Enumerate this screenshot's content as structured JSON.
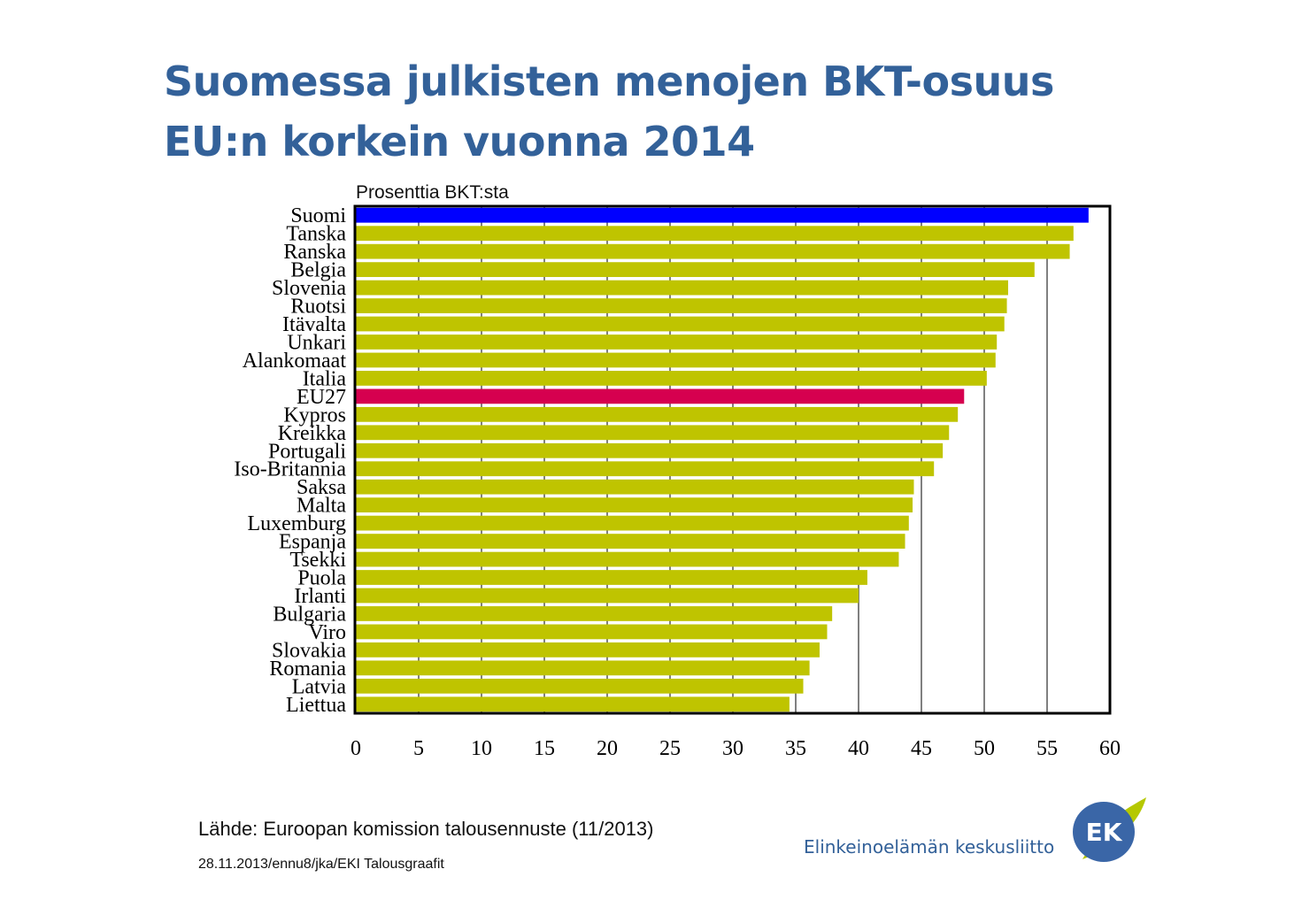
{
  "page": {
    "title_line1": "Suomessa julkisten menojen BKT-osuus",
    "title_line2": "EU:n korkein vuonna 2014",
    "source": "Lähde: Euroopan komission talousennuste (11/2013)",
    "footer": "28.11.2013/ennu8/jka/EKI Talousgraafit",
    "logo_text": "Elinkeinoelämän keskusliitto",
    "logo_mark": "EK"
  },
  "chart_data": {
    "type": "bar",
    "orientation": "horizontal",
    "title": "",
    "unit_label": "Prosenttia BKT:sta",
    "xlabel": "",
    "ylabel": "",
    "xlim": [
      0,
      60
    ],
    "xticks": [
      "0",
      "5",
      "10",
      "15",
      "20",
      "25",
      "30",
      "35",
      "40",
      "45",
      "50",
      "55",
      "60"
    ],
    "grid": "vertical",
    "categories": [
      "Suomi",
      "Tanska",
      "Ranska",
      "Belgia",
      "Slovenia",
      "Ruotsi",
      "Itävalta",
      "Unkari",
      "Alankomaat",
      "Italia",
      "EU27",
      "Kypros",
      "Kreikka",
      "Portugali",
      "Iso-Britannia",
      "Saksa",
      "Malta",
      "Luxemburg",
      "Espanja",
      "Tsekki",
      "Puola",
      "Irlanti",
      "Bulgaria",
      "Viro",
      "Slovakia",
      "Romania",
      "Latvia",
      "Liettua"
    ],
    "values": [
      58.3,
      57.1,
      56.8,
      54.0,
      51.9,
      51.8,
      51.6,
      51.0,
      50.9,
      50.2,
      48.4,
      47.9,
      47.2,
      46.7,
      46.0,
      44.4,
      44.3,
      44.0,
      43.7,
      43.2,
      40.7,
      40.0,
      37.9,
      37.5,
      36.9,
      36.1,
      35.6,
      34.5
    ],
    "colors": {
      "default": "#bfc400",
      "Suomi": "#0000ff",
      "EU27": "#d6004f"
    }
  }
}
